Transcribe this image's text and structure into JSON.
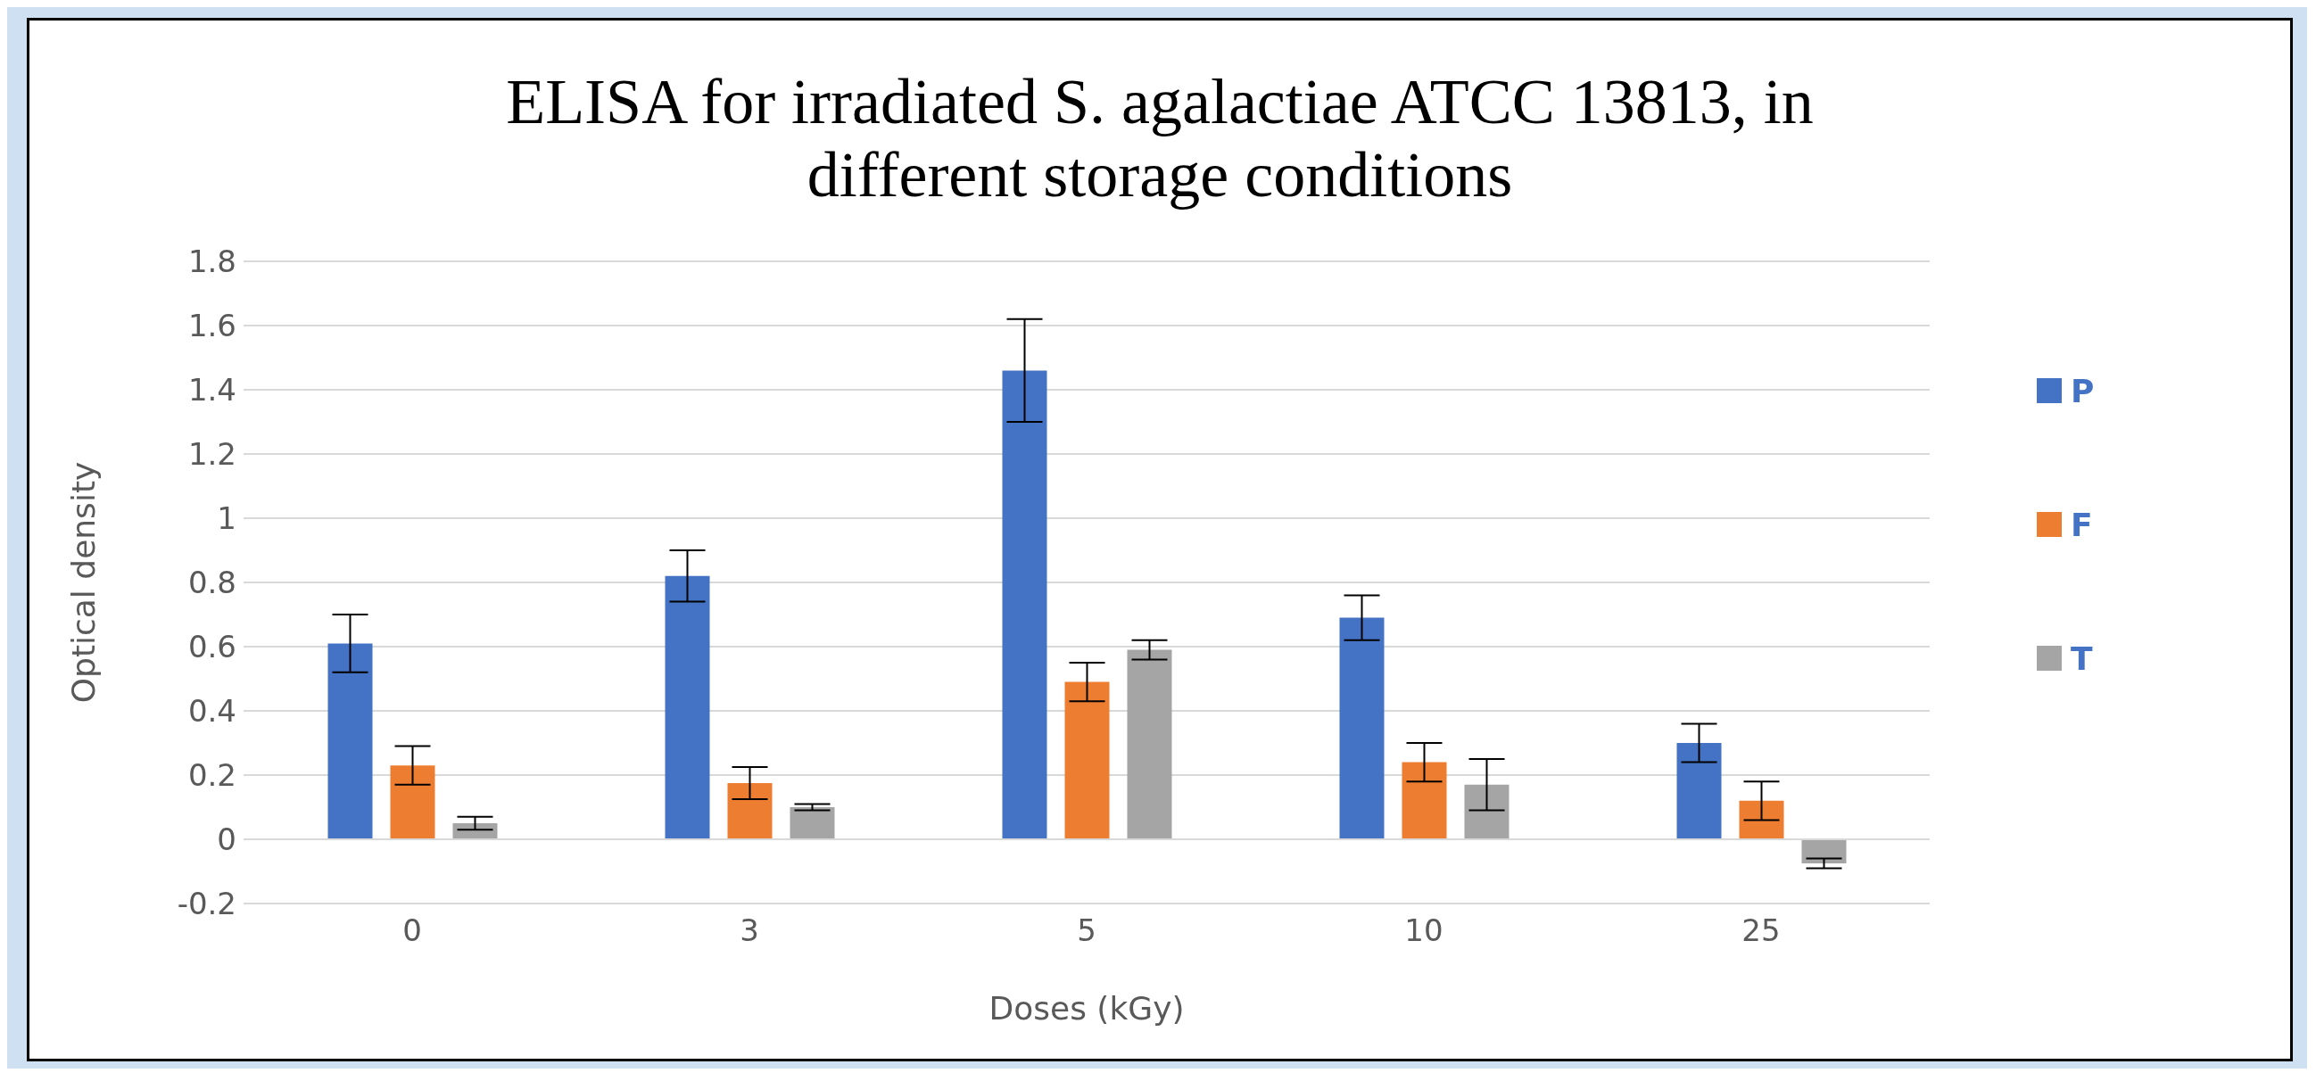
{
  "chart_data": {
    "type": "bar",
    "title": "ELISA for irradiated S. agalactiae ATCC 13813, in different storage conditions",
    "xlabel": "Doses (kGy)",
    "ylabel": "Optical density",
    "categories": [
      "0",
      "3",
      "5",
      "10",
      "25"
    ],
    "series": [
      {
        "name": "P",
        "color": "#4472c4",
        "values": [
          0.61,
          0.82,
          1.46,
          0.69,
          0.3
        ],
        "errors": [
          0.09,
          0.08,
          0.16,
          0.07,
          0.06
        ]
      },
      {
        "name": "F",
        "color": "#ed7d31",
        "values": [
          0.23,
          0.175,
          0.49,
          0.24,
          0.12
        ],
        "errors": [
          0.06,
          0.05,
          0.06,
          0.06,
          0.06
        ]
      },
      {
        "name": "T",
        "color": "#a5a5a5",
        "values": [
          0.05,
          0.1,
          0.59,
          0.17,
          -0.075
        ],
        "errors": [
          0.02,
          0.01,
          0.03,
          0.08,
          0.015
        ]
      }
    ],
    "ylim": [
      -0.2,
      1.8
    ],
    "yticks": [
      -0.2,
      0,
      0.2,
      0.4,
      0.6,
      0.8,
      1,
      1.2,
      1.4,
      1.6,
      1.8
    ],
    "grid": "y",
    "legend": "right"
  }
}
